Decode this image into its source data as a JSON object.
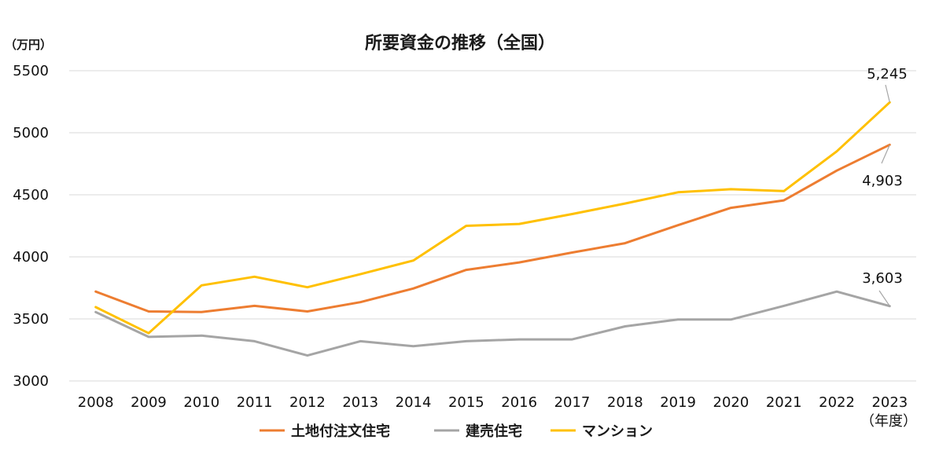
{
  "chart_data": {
    "type": "line",
    "title": "所要資金の推移（全国）",
    "unit_label": "（万円）",
    "x_unit_label": "（年度）",
    "categories": [
      "2008",
      "2009",
      "2010",
      "2011",
      "2012",
      "2013",
      "2014",
      "2015",
      "2016",
      "2017",
      "2018",
      "2019",
      "2020",
      "2021",
      "2022",
      "2023"
    ],
    "ylim": [
      3000,
      5500
    ],
    "yticks": [
      3000,
      3500,
      4000,
      4500,
      5000,
      5500
    ],
    "grid": true,
    "legend_position": "bottom",
    "series": [
      {
        "name": "土地付注文住宅",
        "color": "#ED7D31",
        "values": [
          3720,
          3560,
          3555,
          3605,
          3560,
          3635,
          3745,
          3895,
          3955,
          4035,
          4110,
          4255,
          4395,
          4455,
          4695,
          4903
        ],
        "end_label": "4,903"
      },
      {
        "name": "建売住宅",
        "color": "#A5A5A5",
        "values": [
          3555,
          3355,
          3365,
          3320,
          3205,
          3320,
          3280,
          3320,
          3335,
          3335,
          3440,
          3495,
          3495,
          3605,
          3720,
          3603
        ],
        "end_label": "3,603"
      },
      {
        "name": "マンション",
        "color": "#FFC000",
        "values": [
          3595,
          3385,
          3770,
          3840,
          3755,
          3860,
          3970,
          4250,
          4265,
          4345,
          4430,
          4520,
          4545,
          4530,
          4850,
          5245
        ],
        "end_label": "5,245"
      }
    ]
  }
}
